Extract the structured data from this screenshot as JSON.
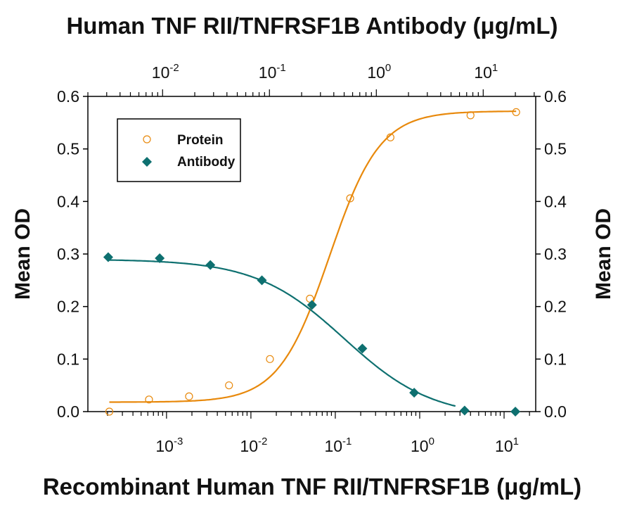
{
  "chart_data": {
    "type": "scatter",
    "title_top": "Human TNF RII/TNFRSF1B Antibody (μg/mL)",
    "xlabel": "Recombinant Human TNF RII/TNFRSF1B (μg/mL)",
    "ylabel_left": "Mean OD",
    "ylabel_right": "Mean OD",
    "x_scale": "log",
    "x_bottom_lim": [
      0.000117,
      23.7
    ],
    "x_top_lim": [
      0.002,
      31
    ],
    "ylim": [
      0,
      0.6
    ],
    "y_ticks": [
      "0.0",
      "0.1",
      "0.2",
      "0.3",
      "0.4",
      "0.5",
      "0.6"
    ],
    "x_bottom_ticks": [
      {
        "base": "10",
        "exp": "-3"
      },
      {
        "base": "10",
        "exp": "-2"
      },
      {
        "base": "10",
        "exp": "-1"
      },
      {
        "base": "10",
        "exp": "0"
      },
      {
        "base": "10",
        "exp": "1"
      }
    ],
    "x_top_ticks": [
      {
        "base": "10",
        "exp": "-2"
      },
      {
        "base": "10",
        "exp": "-1"
      },
      {
        "base": "10",
        "exp": "0"
      },
      {
        "base": "10",
        "exp": "1"
      }
    ],
    "grid": false,
    "legend_position": "top-left",
    "series": [
      {
        "name": "Protein",
        "axis": "bottom",
        "marker": "open-circle",
        "color": "#E8890C",
        "x": [
          0.00021,
          0.00062,
          0.00185,
          0.0055,
          0.0168,
          0.05,
          0.15,
          0.45,
          4.0,
          13.9
        ],
        "y": [
          0.0,
          0.023,
          0.029,
          0.05,
          0.1,
          0.215,
          0.406,
          0.522,
          0.564,
          0.57
        ]
      },
      {
        "name": "Antibody",
        "axis": "top",
        "marker": "filled-diamond",
        "color": "#0E7070",
        "x": [
          0.0031,
          0.0094,
          0.028,
          0.085,
          0.25,
          0.74,
          2.26,
          6.7,
          20
        ],
        "y": [
          0.294,
          0.292,
          0.279,
          0.25,
          0.203,
          0.12,
          0.036,
          0.002,
          0.0
        ]
      }
    ]
  }
}
